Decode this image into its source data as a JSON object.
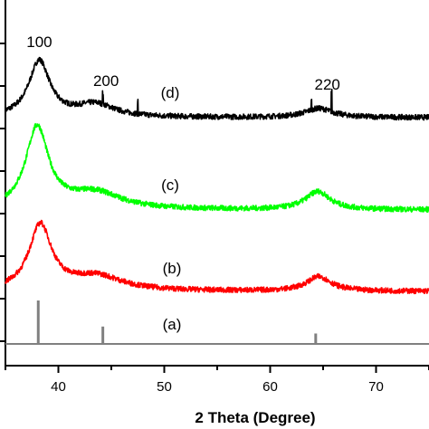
{
  "chart_data": {
    "type": "line",
    "xlabel": "2 Theta (Degree)",
    "ylabel": "",
    "xlim": [
      35,
      75
    ],
    "x_ticks": [
      40,
      50,
      60,
      70
    ],
    "x_tick_labels": [
      "40",
      "50",
      "60",
      "70"
    ],
    "grid": false,
    "legend": "none",
    "series": [
      {
        "label": "(d)",
        "color": "#000000",
        "baseline": 130,
        "noise": 3.0,
        "peaks": [
          {
            "x": 38.2,
            "height": 62,
            "width": 1.2
          },
          {
            "x": 43.5,
            "height": 14,
            "width": 2.2
          },
          {
            "x": 64.6,
            "height": 10,
            "width": 1.6
          }
        ],
        "spikes": [
          {
            "x": 44.2,
            "height": 12
          },
          {
            "x": 47.5,
            "height": 15
          },
          {
            "x": 65.8,
            "height": 22
          },
          {
            "x": 63.9,
            "height": 10
          }
        ]
      },
      {
        "label": "(c)",
        "color": "#00ff00",
        "baseline": 232,
        "noise": 3.0,
        "peaks": [
          {
            "x": 38.0,
            "height": 90,
            "width": 1.3
          },
          {
            "x": 43.5,
            "height": 18,
            "width": 3.0
          },
          {
            "x": 64.5,
            "height": 20,
            "width": 1.4
          }
        ],
        "spikes": []
      },
      {
        "label": "(b)",
        "color": "#ff0000",
        "baseline": 322,
        "noise": 3.0,
        "peaks": [
          {
            "x": 38.3,
            "height": 72,
            "width": 1.3
          },
          {
            "x": 43.6,
            "height": 16,
            "width": 3.0
          },
          {
            "x": 64.6,
            "height": 16,
            "width": 1.4
          }
        ],
        "spikes": []
      }
    ],
    "reference": {
      "label": "(a)",
      "color": "#808080",
      "baseline": 380,
      "lines": [
        {
          "x": 38.1,
          "height": 100
        },
        {
          "x": 44.2,
          "height": 40
        },
        {
          "x": 64.3,
          "height": 24
        }
      ]
    },
    "peak_labels": [
      {
        "text": "100",
        "x": 38.2
      },
      {
        "text": "200",
        "x": 44.5
      },
      {
        "text": "220",
        "x": 65.4
      }
    ]
  }
}
